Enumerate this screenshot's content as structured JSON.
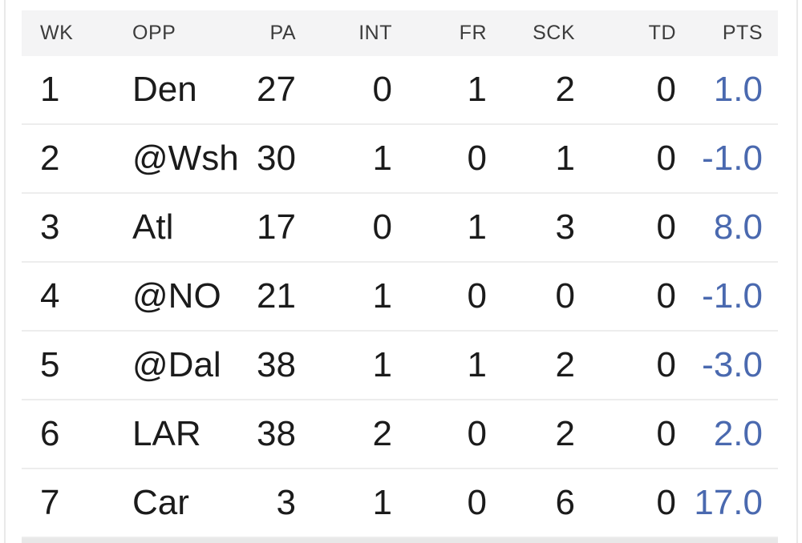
{
  "colors": {
    "points_blue": "#4a69af",
    "header_bg": "#f4f4f5"
  },
  "table": {
    "columns": {
      "wk": {
        "label": "WK"
      },
      "opp": {
        "label": "OPP"
      },
      "pa": {
        "label": "PA"
      },
      "int": {
        "label": "INT"
      },
      "fr": {
        "label": "FR"
      },
      "sck": {
        "label": "SCK"
      },
      "td": {
        "label": "TD"
      },
      "pts": {
        "label": "PTS"
      }
    },
    "rows": [
      {
        "wk": "1",
        "opp": "Den",
        "pa": "27",
        "int": "0",
        "fr": "1",
        "sck": "2",
        "td": "0",
        "pts": "1.0"
      },
      {
        "wk": "2",
        "opp": "@Wsh",
        "pa": "30",
        "int": "1",
        "fr": "0",
        "sck": "1",
        "td": "0",
        "pts": "-1.0"
      },
      {
        "wk": "3",
        "opp": "Atl",
        "pa": "17",
        "int": "0",
        "fr": "1",
        "sck": "3",
        "td": "0",
        "pts": "8.0"
      },
      {
        "wk": "4",
        "opp": "@NO",
        "pa": "21",
        "int": "1",
        "fr": "0",
        "sck": "0",
        "td": "0",
        "pts": "-1.0"
      },
      {
        "wk": "5",
        "opp": "@Dal",
        "pa": "38",
        "int": "1",
        "fr": "1",
        "sck": "2",
        "td": "0",
        "pts": "-3.0"
      },
      {
        "wk": "6",
        "opp": "LAR",
        "pa": "38",
        "int": "2",
        "fr": "0",
        "sck": "2",
        "td": "0",
        "pts": "2.0"
      },
      {
        "wk": "7",
        "opp": "Car",
        "pa": "3",
        "int": "1",
        "fr": "0",
        "sck": "6",
        "td": "0",
        "pts": "17.0"
      }
    ]
  }
}
